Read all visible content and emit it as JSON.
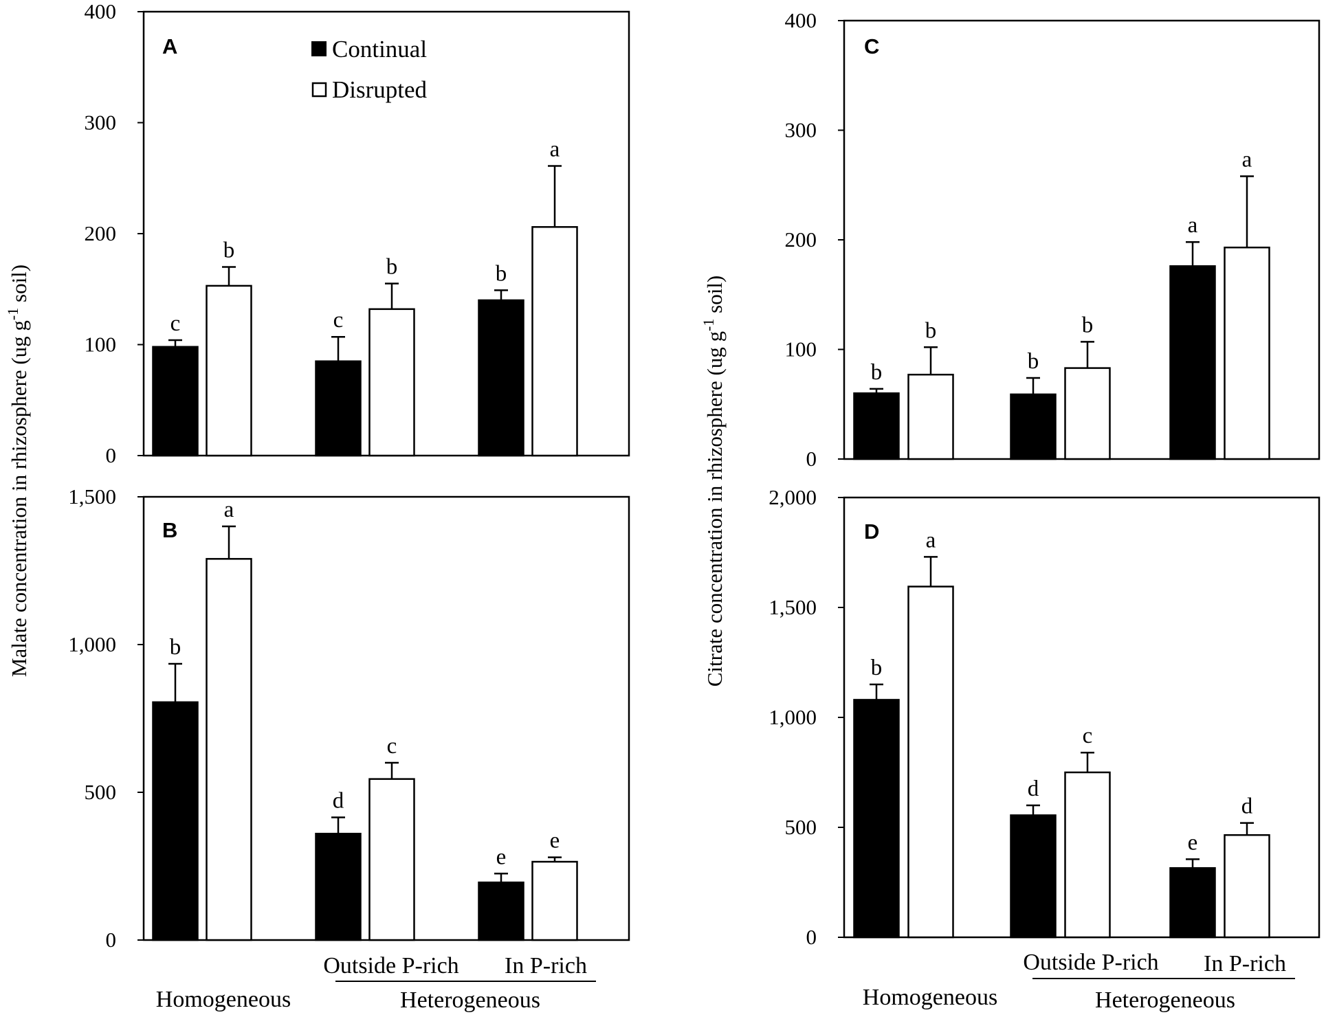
{
  "ylabel_left": "Malate concentration in rhizosphere (ug g",
  "ylabel_right": "Citrate concentration in rhizosphere (ug g",
  "ylabel_sup": "-1",
  "ylabel_tail": " soil)",
  "categories": [
    "Homogeneous",
    "Outside P-rich",
    "In P-rich"
  ],
  "x_groups": {
    "homogeneous": "Homogeneous",
    "outside": "Outside  P-rich",
    "inside": "In P-rich",
    "heterogeneous": "Heterogeneous"
  },
  "legend": {
    "continual": "Continual",
    "disrupted": "Disrupted"
  },
  "colors": {
    "continual": "#000000",
    "disrupted": "#ffffff",
    "axis": "#000000"
  },
  "chart_data": [
    {
      "panel": "A",
      "type": "bar",
      "categories": [
        "Homogeneous",
        "Outside P-rich",
        "In P-rich"
      ],
      "series": [
        {
          "name": "Continual",
          "values": [
            98,
            85,
            140
          ],
          "errors": [
            6,
            22,
            9
          ],
          "letters": [
            "c",
            "c",
            "b"
          ]
        },
        {
          "name": "Disrupted",
          "values": [
            153,
            132,
            206
          ],
          "errors": [
            17,
            23,
            55
          ],
          "letters": [
            "b",
            "b",
            "a"
          ]
        }
      ],
      "ylim": [
        0,
        400
      ],
      "yticks": [
        0,
        100,
        200,
        300,
        400
      ],
      "ytick_labels": [
        "0",
        "100",
        "200",
        "300",
        "400"
      ],
      "ylabel": "Malate concentration in rhizosphere (ug g-1 soil)"
    },
    {
      "panel": "B",
      "type": "bar",
      "categories": [
        "Homogeneous",
        "Outside P-rich",
        "In P-rich"
      ],
      "series": [
        {
          "name": "Continual",
          "values": [
            805,
            360,
            195
          ],
          "errors": [
            130,
            55,
            30
          ],
          "letters": [
            "b",
            "d",
            "e"
          ]
        },
        {
          "name": "Disrupted",
          "values": [
            1290,
            545,
            265
          ],
          "errors": [
            110,
            55,
            15
          ],
          "letters": [
            "a",
            "c",
            "e"
          ]
        }
      ],
      "ylim": [
        0,
        1500
      ],
      "yticks": [
        0,
        500,
        1000,
        1500
      ],
      "ytick_labels": [
        "0",
        "500",
        "1,000",
        "1,500"
      ],
      "ylabel": "Malate concentration in rhizosphere (ug g-1 soil)"
    },
    {
      "panel": "C",
      "type": "bar",
      "categories": [
        "Homogeneous",
        "Outside P-rich",
        "In P-rich"
      ],
      "series": [
        {
          "name": "Continual",
          "values": [
            60,
            59,
            176
          ],
          "errors": [
            4,
            15,
            22
          ],
          "letters": [
            "b",
            "b",
            "a"
          ]
        },
        {
          "name": "Disrupted",
          "values": [
            77,
            83,
            193
          ],
          "errors": [
            25,
            24,
            65
          ],
          "letters": [
            "b",
            "b",
            "a"
          ]
        }
      ],
      "ylim": [
        0,
        400
      ],
      "yticks": [
        0,
        100,
        200,
        300,
        400
      ],
      "ytick_labels": [
        "0",
        "100",
        "200",
        "300",
        "400"
      ],
      "ylabel": "Citrate concentration in rhizosphere (ug g-1 soil)"
    },
    {
      "panel": "D",
      "type": "bar",
      "categories": [
        "Homogeneous",
        "Outside P-rich",
        "In P-rich"
      ],
      "series": [
        {
          "name": "Continual",
          "values": [
            1080,
            555,
            315
          ],
          "errors": [
            70,
            45,
            40
          ],
          "letters": [
            "b",
            "d",
            "e"
          ]
        },
        {
          "name": "Disrupted",
          "values": [
            1595,
            750,
            465
          ],
          "errors": [
            135,
            90,
            55
          ],
          "letters": [
            "a",
            "c",
            "d"
          ]
        }
      ],
      "ylim": [
        0,
        2000
      ],
      "yticks": [
        0,
        500,
        1000,
        1500,
        2000
      ],
      "ytick_labels": [
        "0",
        "500",
        "1,000",
        "1,500",
        "2,000"
      ],
      "ylabel": "Citrate concentration in rhizosphere (ug g-1 soil)"
    }
  ]
}
